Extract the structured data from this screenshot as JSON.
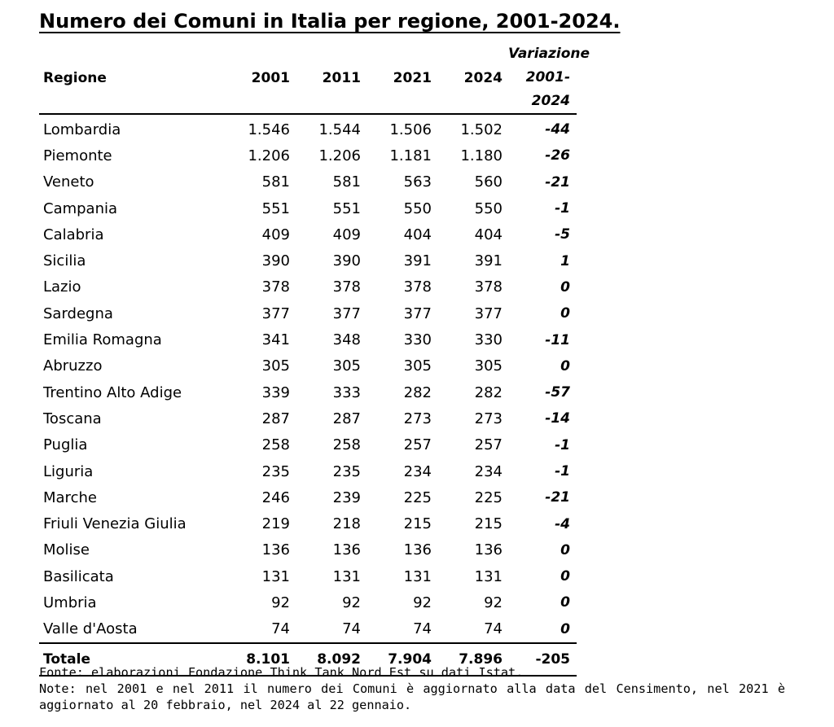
{
  "title": "Numero dei Comuni in Italia per regione, 2001-2024.",
  "table": {
    "headers": {
      "regione": "Regione",
      "y2001": "2001",
      "y2011": "2011",
      "y2021": "2021",
      "y2024": "2024",
      "variazione_line1": "Variazione",
      "variazione_line2": "2001-2024"
    },
    "rows": [
      {
        "regione": "Lombardia",
        "y2001": "1.546",
        "y2011": "1.544",
        "y2021": "1.506",
        "y2024": "1.502",
        "variazione": "-44"
      },
      {
        "regione": "Piemonte",
        "y2001": "1.206",
        "y2011": "1.206",
        "y2021": "1.181",
        "y2024": "1.180",
        "variazione": "-26"
      },
      {
        "regione": "Veneto",
        "y2001": "581",
        "y2011": "581",
        "y2021": "563",
        "y2024": "560",
        "variazione": "-21"
      },
      {
        "regione": "Campania",
        "y2001": "551",
        "y2011": "551",
        "y2021": "550",
        "y2024": "550",
        "variazione": "-1"
      },
      {
        "regione": "Calabria",
        "y2001": "409",
        "y2011": "409",
        "y2021": "404",
        "y2024": "404",
        "variazione": "-5"
      },
      {
        "regione": "Sicilia",
        "y2001": "390",
        "y2011": "390",
        "y2021": "391",
        "y2024": "391",
        "variazione": "1"
      },
      {
        "regione": "Lazio",
        "y2001": "378",
        "y2011": "378",
        "y2021": "378",
        "y2024": "378",
        "variazione": "0"
      },
      {
        "regione": "Sardegna",
        "y2001": "377",
        "y2011": "377",
        "y2021": "377",
        "y2024": "377",
        "variazione": "0"
      },
      {
        "regione": "Emilia Romagna",
        "y2001": "341",
        "y2011": "348",
        "y2021": "330",
        "y2024": "330",
        "variazione": "-11"
      },
      {
        "regione": "Abruzzo",
        "y2001": "305",
        "y2011": "305",
        "y2021": "305",
        "y2024": "305",
        "variazione": "0"
      },
      {
        "regione": "Trentino Alto Adige",
        "y2001": "339",
        "y2011": "333",
        "y2021": "282",
        "y2024": "282",
        "variazione": "-57"
      },
      {
        "regione": "Toscana",
        "y2001": "287",
        "y2011": "287",
        "y2021": "273",
        "y2024": "273",
        "variazione": "-14"
      },
      {
        "regione": "Puglia",
        "y2001": "258",
        "y2011": "258",
        "y2021": "257",
        "y2024": "257",
        "variazione": "-1"
      },
      {
        "regione": "Liguria",
        "y2001": "235",
        "y2011": "235",
        "y2021": "234",
        "y2024": "234",
        "variazione": "-1"
      },
      {
        "regione": "Marche",
        "y2001": "246",
        "y2011": "239",
        "y2021": "225",
        "y2024": "225",
        "variazione": "-21"
      },
      {
        "regione": "Friuli Venezia Giulia",
        "y2001": "219",
        "y2011": "218",
        "y2021": "215",
        "y2024": "215",
        "variazione": "-4"
      },
      {
        "regione": "Molise",
        "y2001": "136",
        "y2011": "136",
        "y2021": "136",
        "y2024": "136",
        "variazione": "0"
      },
      {
        "regione": "Basilicata",
        "y2001": "131",
        "y2011": "131",
        "y2021": "131",
        "y2024": "131",
        "variazione": "0"
      },
      {
        "regione": "Umbria",
        "y2001": "92",
        "y2011": "92",
        "y2021": "92",
        "y2024": "92",
        "variazione": "0"
      },
      {
        "regione": "Valle d'Aosta",
        "y2001": "74",
        "y2011": "74",
        "y2021": "74",
        "y2024": "74",
        "variazione": "0"
      }
    ],
    "total": {
      "regione": "Totale",
      "y2001": "8.101",
      "y2011": "8.092",
      "y2021": "7.904",
      "y2024": "7.896",
      "variazione": "-205"
    }
  },
  "notes": {
    "source": "Fonte: elaborazioni Fondazione Think Tank Nord Est su dati Istat.",
    "note_line1": "Note: nel 2001 e nel 2011 il numero dei Comuni è aggiornato alla data del Censimento, nel 2021 è",
    "note_line2": "aggiornato al 20 febbraio, nel 2024 al 22 gennaio."
  }
}
